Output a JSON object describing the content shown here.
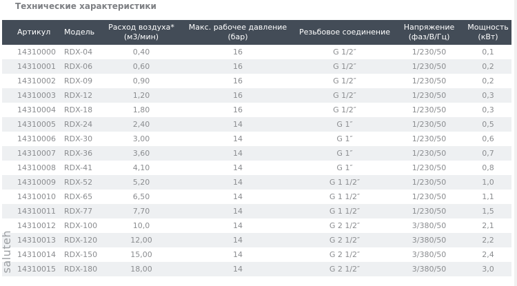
{
  "title": "Технические характеристики",
  "columns": [
    "Артикул",
    "Модель",
    "Расход воздуха*\n(м3/мин)",
    "Макс. рабочее давление\n(бар)",
    "Резьбовое соединение",
    "Напряжение\n(фаз/В/Гц)",
    "Мощность\n(кВт)"
  ],
  "rows": [
    [
      "14310000",
      "RDX-04",
      "0,40",
      "16",
      "G 1/2″",
      "1/230/50",
      "0,1"
    ],
    [
      "14310001",
      "RDX-06",
      "0,60",
      "16",
      "G 1/2″",
      "1/230/50",
      "0,2"
    ],
    [
      "14310002",
      "RDX-09",
      "0,90",
      "16",
      "G 1/2″",
      "1/230/50",
      "0,2"
    ],
    [
      "14310003",
      "RDX-12",
      "1,20",
      "16",
      "G 1/2″",
      "1/230/50",
      "0,3"
    ],
    [
      "14310004",
      "RDX-18",
      "1,80",
      "16",
      "G 1/2″",
      "1/230/50",
      "0,3"
    ],
    [
      "14310005",
      "RDX-24",
      "2,40",
      "14",
      "G 1″",
      "1/230/50",
      "0,5"
    ],
    [
      "14310006",
      "RDX-30",
      "3,00",
      "14",
      "G 1″",
      "1/230/50",
      "0,6"
    ],
    [
      "14310007",
      "RDX-36",
      "3,60",
      "14",
      "G 1″",
      "1/230/50",
      "0,7"
    ],
    [
      "14310008",
      "RDX-41",
      "4,10",
      "14",
      "G 1″",
      "1/230/50",
      "0,8"
    ],
    [
      "14310009",
      "RDX-52",
      "5,20",
      "14",
      "G 1 1/2″",
      "1/230/50",
      "1,0"
    ],
    [
      "14310010",
      "RDX-65",
      "6,50",
      "14",
      "G 1 1/2″",
      "1/230/50",
      "1,1"
    ],
    [
      "14310011",
      "RDX-77",
      "7,70",
      "14",
      "G 1 1/2″",
      "1/230/50",
      "1,5"
    ],
    [
      "14310012",
      "RDX-100",
      "10,0",
      "14",
      "G 2 1/2″",
      "3/380/50",
      "2,1"
    ],
    [
      "14310013",
      "RDX-120",
      "12,00",
      "14",
      "G 2 1/2″",
      "3/380/50",
      "2,2"
    ],
    [
      "14310014",
      "RDX-150",
      "15,00",
      "14",
      "G 2 1/2″",
      "3/380/50",
      "2,4"
    ],
    [
      "14310015",
      "RDX-180",
      "18,00",
      "14",
      "G 2 1/2″",
      "3/380/50",
      "3,0"
    ]
  ],
  "watermark": "saluteh",
  "colors": {
    "header_bg": "#434c57",
    "row_alt": "#eef0f2",
    "text": "#8a8c8f"
  }
}
